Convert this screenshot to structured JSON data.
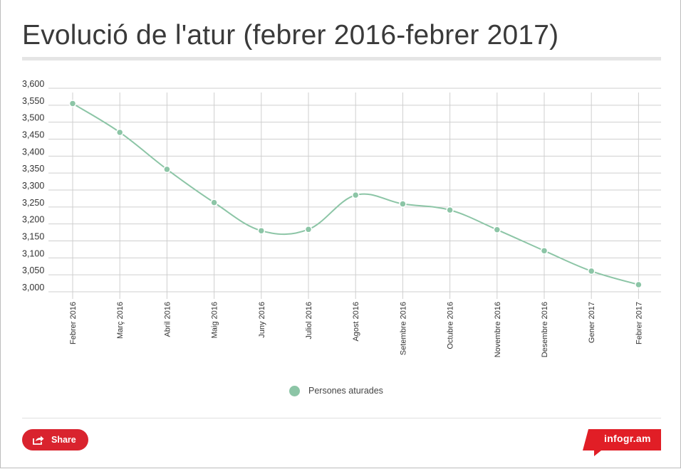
{
  "title": "Evolució de l'atur (febrer 2016-febrer 2017)",
  "share_label": "Share",
  "brand_label": "infogr.am",
  "colors": {
    "series": "#8cc5a6",
    "grid": "#cfcfcf",
    "axis_text": "#333333",
    "share": "#d9232e",
    "brand": "#e11e26"
  },
  "icons": {
    "share": "share-icon",
    "brand": "infogram-logo"
  },
  "chart_data": {
    "type": "line",
    "categories": [
      "Febrer 2016",
      "Març 2016",
      "Abril 2016",
      "Maig 2016",
      "Juny 2016",
      "Juliol 2016",
      "Agost 2016",
      "Setembre 2016",
      "Octubre 2016",
      "Novembre 2016",
      "Desembre 2016",
      "Gener 2017",
      "Febrer 2017"
    ],
    "series": [
      {
        "name": "Persones aturades",
        "values": [
          3555,
          3470,
          3361,
          3263,
          3180,
          3184,
          3285,
          3259,
          3241,
          3183,
          3121,
          3061,
          3021
        ]
      }
    ],
    "ylim": [
      3000,
      3600
    ],
    "yticks": [
      3000,
      3050,
      3100,
      3150,
      3200,
      3250,
      3300,
      3350,
      3400,
      3450,
      3500,
      3550,
      3600
    ],
    "ytick_labels": [
      "3,000",
      "3,050",
      "3,100",
      "3,150",
      "3,200",
      "3,250",
      "3,300",
      "3,350",
      "3,400",
      "3,450",
      "3,500",
      "3,550",
      "3,600"
    ],
    "grid": true,
    "legend": "bottom-center",
    "xlabel": "",
    "ylabel": ""
  }
}
